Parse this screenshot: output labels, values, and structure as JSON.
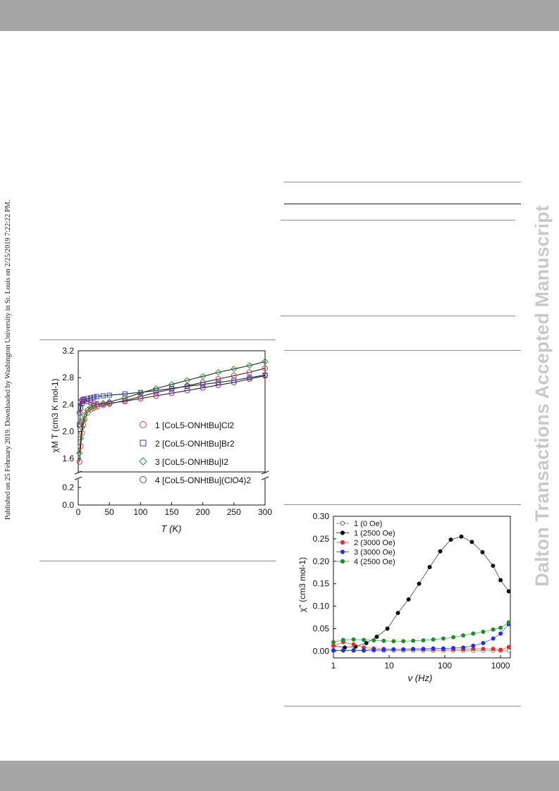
{
  "side_note": "Published on 25 February 2019. Downloaded by Washington University in St. Louis on 2/25/2019 7:22:22 PM.",
  "watermark": "Dalton Transactions Accepted Manuscript",
  "chart_data": [
    {
      "type": "scatter",
      "title": "",
      "xlabel": "T (K)",
      "ylabel": "χM T (cm3 K mol-1)",
      "xlim": [
        0,
        300
      ],
      "ylim_lower": [
        0,
        0.2
      ],
      "ylim_upper": [
        1.4,
        3.2
      ],
      "x_ticks": [
        "0",
        "50",
        "100",
        "150",
        "200",
        "250",
        "300"
      ],
      "y_ticks": [
        "0.0",
        "0.2",
        "1.6",
        "2.0",
        "2.4",
        "2.8",
        "3.2"
      ],
      "legend_position": "right",
      "axis_break": true,
      "series": [
        {
          "name": "1 [CoL5-ONHtBu]Cl2",
          "marker": "circle",
          "color": "#d9403a",
          "x": [
            2,
            4,
            6,
            8,
            10,
            15,
            20,
            25,
            30,
            40,
            50,
            75,
            100,
            125,
            150,
            175,
            200,
            225,
            250,
            275,
            300
          ],
          "y": [
            1.55,
            1.78,
            1.98,
            2.1,
            2.18,
            2.28,
            2.33,
            2.35,
            2.37,
            2.39,
            2.41,
            2.46,
            2.52,
            2.58,
            2.63,
            2.68,
            2.73,
            2.78,
            2.83,
            2.88,
            2.94
          ]
        },
        {
          "name": "2 [CoL5-ONHtBu]Br2",
          "marker": "square",
          "color": "#2a3fb0",
          "x": [
            2,
            4,
            6,
            8,
            10,
            15,
            20,
            25,
            30,
            40,
            50,
            75,
            100,
            125,
            150,
            175,
            200,
            225,
            250,
            275,
            300
          ],
          "y": [
            2.1,
            2.35,
            2.42,
            2.45,
            2.47,
            2.49,
            2.5,
            2.51,
            2.52,
            2.53,
            2.54,
            2.56,
            2.58,
            2.61,
            2.64,
            2.67,
            2.7,
            2.73,
            2.76,
            2.8,
            2.84
          ]
        },
        {
          "name": "3 [CoL5-ONHtBu]I2",
          "marker": "diamond",
          "color": "#2f8f2f",
          "x": [
            2,
            4,
            6,
            8,
            10,
            15,
            20,
            25,
            30,
            40,
            50,
            75,
            100,
            125,
            150,
            175,
            200,
            225,
            250,
            275,
            300
          ],
          "y": [
            1.68,
            1.9,
            2.06,
            2.17,
            2.24,
            2.32,
            2.36,
            2.38,
            2.4,
            2.42,
            2.44,
            2.5,
            2.57,
            2.64,
            2.7,
            2.76,
            2.82,
            2.88,
            2.93,
            2.98,
            3.04
          ]
        },
        {
          "name": "4 [CoL5-ONHtBu](ClO4)2",
          "marker": "circle",
          "color": "#8c2f9a",
          "x": [
            2,
            4,
            6,
            8,
            10,
            15,
            20,
            25,
            30,
            40,
            50,
            75,
            100,
            125,
            150,
            175,
            200,
            225,
            250,
            275,
            300
          ],
          "y": [
            2.28,
            2.44,
            2.47,
            2.48,
            2.47,
            2.45,
            2.43,
            2.42,
            2.41,
            2.41,
            2.42,
            2.45,
            2.49,
            2.53,
            2.57,
            2.61,
            2.65,
            2.69,
            2.73,
            2.78,
            2.83
          ]
        }
      ]
    },
    {
      "type": "line",
      "title": "",
      "xlabel": "ν (Hz)",
      "ylabel": "χ'' (cm3 mol-1)",
      "x_scale": "log",
      "xlim": [
        1,
        1500
      ],
      "ylim": [
        -0.015,
        0.3
      ],
      "x_ticks": [
        "1",
        "10",
        "100",
        "1000"
      ],
      "y_ticks": [
        "0.00",
        "0.05",
        "0.10",
        "0.15",
        "0.20",
        "0.25",
        "0.30"
      ],
      "legend_position": "top-left",
      "series": [
        {
          "name": "1 (0 Oe)",
          "marker": "open-circle",
          "color": "#666666",
          "x": [
            1,
            1.5,
            2.3,
            3.5,
            5.3,
            8,
            12,
            18,
            27,
            41,
            62,
            94,
            142,
            214,
            323,
            488,
            737,
            1000,
            1400
          ],
          "y": [
            0.001,
            0.001,
            0.001,
            0.001,
            0.001,
            0.001,
            0.001,
            0.001,
            0.001,
            0.001,
            0.001,
            0.001,
            0.001,
            0.001,
            0.001,
            0.001,
            0.001,
            0.001,
            0.001
          ]
        },
        {
          "name": "1 (2500 Oe)",
          "marker": "circle",
          "color": "#111111",
          "x": [
            1,
            1.6,
            2.5,
            3.9,
            6,
            9.3,
            14.4,
            22.3,
            34.5,
            53.4,
            82.6,
            128,
            198,
            306,
            474,
            733,
            1000,
            1400
          ],
          "y": [
            0.012,
            0.008,
            0.01,
            0.018,
            0.032,
            0.05,
            0.085,
            0.115,
            0.15,
            0.187,
            0.222,
            0.248,
            0.255,
            0.243,
            0.22,
            0.19,
            0.158,
            0.133
          ]
        },
        {
          "name": "2 (3000 Oe)",
          "marker": "circle",
          "color": "#e0302b",
          "x": [
            1,
            1.5,
            2.3,
            3.5,
            5.3,
            8,
            12,
            18,
            27,
            41,
            62,
            94,
            142,
            214,
            323,
            488,
            737,
            1000,
            1400
          ],
          "y": [
            0.012,
            0.02,
            0.015,
            0.008,
            0.006,
            0.005,
            0.004,
            0.004,
            0.004,
            0.004,
            0.004,
            0.004,
            0.004,
            0.004,
            0.005,
            0.005,
            0.005,
            0.003,
            0.009
          ]
        },
        {
          "name": "3 (3000 Oe)",
          "marker": "circle",
          "color": "#2233dd",
          "x": [
            1,
            1.5,
            2.3,
            3.5,
            5.3,
            8,
            12,
            18,
            27,
            41,
            62,
            94,
            142,
            214,
            323,
            488,
            737,
            1000,
            1400
          ],
          "y": [
            0.002,
            0.002,
            0.002,
            0.002,
            0.003,
            0.003,
            0.004,
            0.004,
            0.005,
            0.005,
            0.006,
            0.006,
            0.007,
            0.008,
            0.012,
            0.018,
            0.028,
            0.039,
            0.06
          ]
        },
        {
          "name": "4 (2500 Oe)",
          "marker": "circle",
          "color": "#1f8f2a",
          "x": [
            1,
            1.5,
            2.3,
            3.5,
            5.3,
            8,
            12,
            18,
            27,
            41,
            62,
            94,
            142,
            214,
            323,
            488,
            737,
            1000,
            1400
          ],
          "y": [
            0.02,
            0.025,
            0.026,
            0.025,
            0.024,
            0.023,
            0.022,
            0.022,
            0.023,
            0.024,
            0.026,
            0.028,
            0.031,
            0.035,
            0.039,
            0.043,
            0.048,
            0.052,
            0.064
          ]
        }
      ]
    }
  ]
}
